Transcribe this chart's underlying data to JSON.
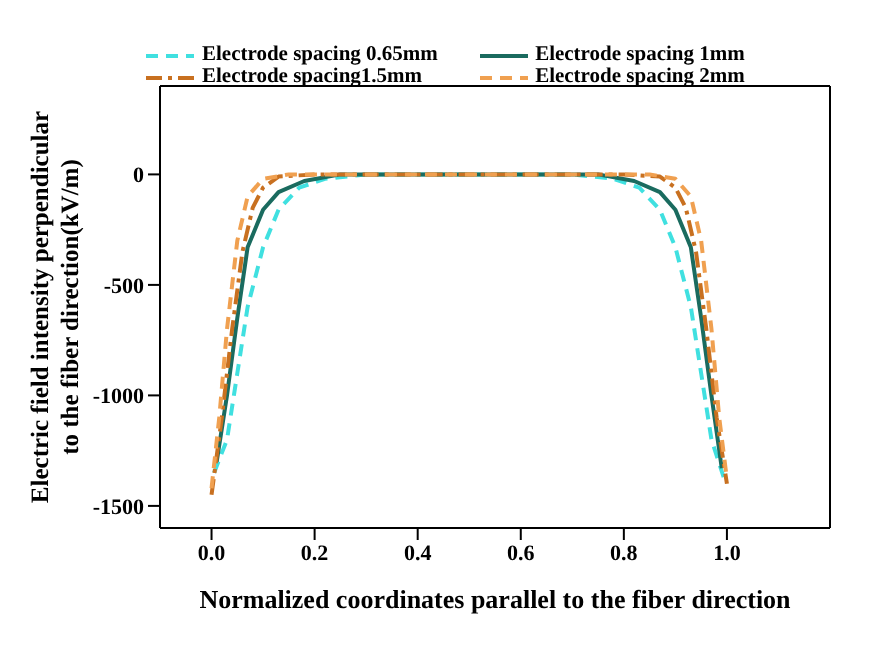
{
  "chart_data": {
    "type": "line",
    "xlabel": "Normalized coordinates parallel to the fiber direction",
    "ylabel": "Electric field intensity perpendicular to the fiber direction(kV/m)",
    "xlim": [
      -0.1,
      1.2
    ],
    "xticks": [
      {
        "value": 0,
        "label": "0.0"
      },
      0.2,
      0.4,
      0.6,
      0.8,
      {
        "value": 1,
        "label": "1.0"
      }
    ],
    "ylim": [
      -1600,
      400
    ],
    "yticks": [
      -1500,
      -1000,
      -500,
      0
    ],
    "grid": false,
    "legend": "top",
    "marker": "none",
    "series": [
      {
        "name": "Electrode spacing 0.65mm",
        "color": "#40e0e0",
        "line_style": "dashed",
        "x": [
          0.005,
          0.03,
          0.05,
          0.07,
          0.1,
          0.13,
          0.17,
          0.22,
          0.3,
          0.7,
          0.78,
          0.83,
          0.87,
          0.9,
          0.93,
          0.95,
          0.97,
          0.995
        ],
        "values": [
          -1350,
          -1200,
          -900,
          -600,
          -330,
          -160,
          -60,
          -20,
          0,
          0,
          -20,
          -60,
          -160,
          -330,
          -600,
          -900,
          -1200,
          -1380
        ]
      },
      {
        "name": "Electrode spacing 1mm",
        "color": "#1a6b5f",
        "line_style": "solid",
        "x": [
          0.01,
          0.03,
          0.05,
          0.07,
          0.1,
          0.13,
          0.18,
          0.25,
          0.75,
          0.82,
          0.87,
          0.9,
          0.93,
          0.95,
          0.97,
          0.99
        ],
        "values": [
          -1300,
          -1000,
          -650,
          -330,
          -160,
          -80,
          -30,
          0,
          0,
          -30,
          -80,
          -160,
          -330,
          -650,
          -1000,
          -1330
        ]
      },
      {
        "name": "Electrode spacing1.5mm",
        "color": "#c87020",
        "line_style": "dashdot",
        "x": [
          0,
          0.02,
          0.04,
          0.06,
          0.08,
          0.1,
          0.13,
          0.2,
          0.8,
          0.87,
          0.9,
          0.92,
          0.94,
          0.96,
          0.98,
          1.0
        ],
        "values": [
          -1450,
          -1100,
          -700,
          -350,
          -150,
          -60,
          -10,
          0,
          0,
          -10,
          -60,
          -150,
          -350,
          -700,
          -1100,
          -1400
        ]
      },
      {
        "name": "Electrode spacing 2mm",
        "color": "#f0a050",
        "line_style": "dashed",
        "x": [
          0,
          0.015,
          0.03,
          0.05,
          0.07,
          0.1,
          0.15,
          0.85,
          0.9,
          0.93,
          0.95,
          0.97,
          0.985,
          1.0
        ],
        "values": [
          -1420,
          -1100,
          -700,
          -300,
          -100,
          -20,
          0,
          0,
          -20,
          -100,
          -300,
          -700,
          -1100,
          -1380
        ]
      }
    ]
  }
}
